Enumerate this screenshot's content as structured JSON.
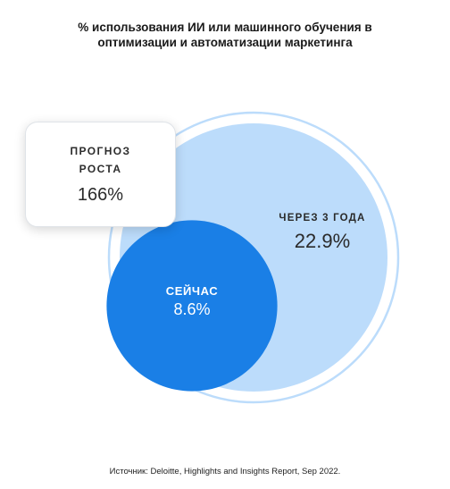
{
  "chart_data": {
    "type": "bubble",
    "title_lines": [
      "% использования ИИ или машинного обучения в",
      "оптимизации и автоматизации маркетинга"
    ],
    "series": [
      {
        "name": "СЕЙЧАС",
        "value": 8.6,
        "label": "8.6%"
      },
      {
        "name": "ЧЕРЕЗ 3 ГОДА",
        "value": 22.9,
        "label": "22.9%"
      }
    ],
    "growth": {
      "label_lines": [
        "ПРОГНОЗ",
        "РОСТА"
      ],
      "value": 166,
      "label": "166%"
    },
    "source": "Источник: Deloitte, Highlights and Insights Report, Sep 2022."
  },
  "colors": {
    "now": "#1a7fe6",
    "future": "#bcdcfb",
    "ring": "#bcdcfb"
  }
}
